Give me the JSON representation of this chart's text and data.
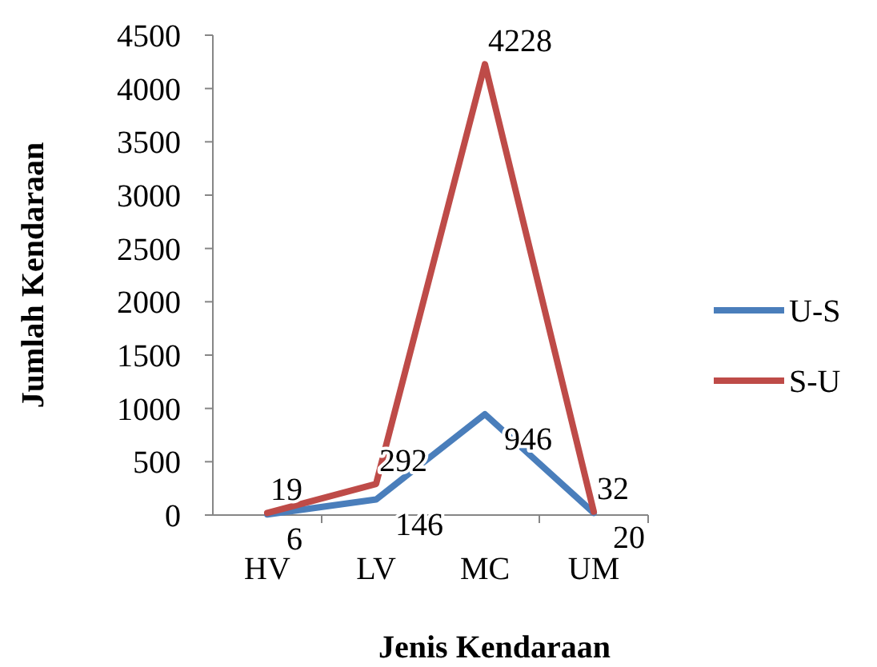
{
  "chart_data": {
    "type": "line",
    "xlabel": "Jenis Kendaraan",
    "ylabel": "Jumlah Kendaraan",
    "categories": [
      "HV",
      "LV",
      "MC",
      "UM"
    ],
    "series": [
      {
        "name": "U-S",
        "color": "#4a7ebb",
        "values": [
          6,
          146,
          946,
          20
        ]
      },
      {
        "name": "S-U",
        "color": "#be4b48",
        "values": [
          19,
          292,
          4228,
          32
        ]
      }
    ],
    "ylim": [
      0,
      4500
    ],
    "yticks": [
      0,
      500,
      1000,
      1500,
      2000,
      2500,
      3000,
      3500,
      4000,
      4500
    ],
    "grid": false,
    "legend": "right",
    "data_labels": true,
    "marker": "none",
    "line_style": "solid"
  }
}
